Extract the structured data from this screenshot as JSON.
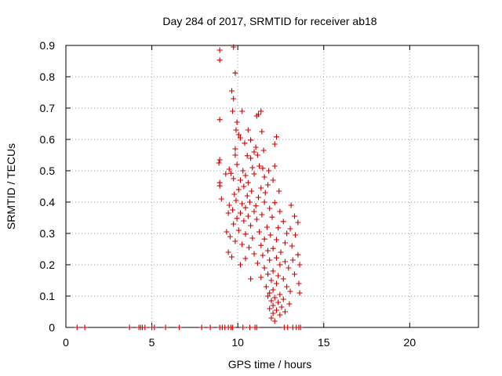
{
  "chart_data": {
    "type": "scatter",
    "title": "Day 284 of 2017, SRMTID for receiver ab18",
    "xlabel": "GPS time / hours",
    "ylabel": "SRMTID / TECUs",
    "xlim": [
      0,
      24
    ],
    "ylim": [
      0,
      0.9
    ],
    "xticks": [
      0,
      5,
      10,
      15,
      20
    ],
    "xtick_labels": [
      "0",
      "5",
      "10",
      "15",
      "20"
    ],
    "yticks": [
      0,
      0.1,
      0.2,
      0.3,
      0.4,
      0.5,
      0.6,
      0.7,
      0.8,
      0.9
    ],
    "ytick_labels": [
      "0",
      "0.1",
      "0.2",
      "0.3",
      "0.4",
      "0.5",
      "0.6",
      "0.7",
      "0.8",
      "0.9"
    ],
    "grid": true,
    "marker": "+",
    "series": [
      {
        "name": "SRMTID",
        "color": "#cc0000",
        "points": [
          [
            0.65,
            0
          ],
          [
            1.1,
            0
          ],
          [
            3.7,
            0
          ],
          [
            4.25,
            0
          ],
          [
            4.35,
            0
          ],
          [
            4.45,
            0
          ],
          [
            4.6,
            0
          ],
          [
            5.0,
            0
          ],
          [
            5.15,
            0
          ],
          [
            5.8,
            0
          ],
          [
            6.6,
            0
          ],
          [
            7.9,
            0
          ],
          [
            8.4,
            0
          ],
          [
            8.95,
            0
          ],
          [
            9.1,
            0
          ],
          [
            9.25,
            0
          ],
          [
            9.45,
            0
          ],
          [
            9.6,
            0
          ],
          [
            9.7,
            0
          ],
          [
            10.3,
            0
          ],
          [
            10.7,
            0
          ],
          [
            11.0,
            0
          ],
          [
            11.1,
            0
          ],
          [
            12.7,
            0
          ],
          [
            12.9,
            0
          ],
          [
            13.2,
            0
          ],
          [
            13.4,
            0
          ],
          [
            13.55,
            0
          ],
          [
            13.65,
            0
          ],
          [
            8.95,
            0.885
          ],
          [
            8.95,
            0.853
          ],
          [
            9.75,
            0.895
          ],
          [
            9.85,
            0.812
          ],
          [
            9.65,
            0.755
          ],
          [
            9.75,
            0.73
          ],
          [
            10.25,
            0.69
          ],
          [
            9.7,
            0.69
          ],
          [
            11.35,
            0.69
          ],
          [
            11.2,
            0.68
          ],
          [
            11.1,
            0.675
          ],
          [
            8.95,
            0.663
          ],
          [
            9.95,
            0.655
          ],
          [
            9.9,
            0.63
          ],
          [
            10.6,
            0.63
          ],
          [
            11.4,
            0.625
          ],
          [
            10.05,
            0.615
          ],
          [
            10.15,
            0.605
          ],
          [
            10.75,
            0.598
          ],
          [
            12.25,
            0.608
          ],
          [
            10.4,
            0.588
          ],
          [
            11.05,
            0.575
          ],
          [
            12.15,
            0.585
          ],
          [
            9.85,
            0.57
          ],
          [
            10.95,
            0.56
          ],
          [
            11.5,
            0.565
          ],
          [
            9.85,
            0.55
          ],
          [
            10.55,
            0.548
          ],
          [
            11.15,
            0.55
          ],
          [
            10.75,
            0.54
          ],
          [
            8.95,
            0.535
          ],
          [
            8.9,
            0.525
          ],
          [
            9.95,
            0.52
          ],
          [
            10.85,
            0.51
          ],
          [
            11.25,
            0.515
          ],
          [
            11.45,
            0.508
          ],
          [
            12.15,
            0.515
          ],
          [
            9.5,
            0.505
          ],
          [
            10.3,
            0.5
          ],
          [
            11.8,
            0.5
          ],
          [
            9.6,
            0.492
          ],
          [
            9.3,
            0.49
          ],
          [
            10.45,
            0.485
          ],
          [
            10.95,
            0.49
          ],
          [
            11.55,
            0.48
          ],
          [
            9.75,
            0.475
          ],
          [
            10.15,
            0.47
          ],
          [
            12.05,
            0.47
          ],
          [
            10.6,
            0.462
          ],
          [
            11.75,
            0.455
          ],
          [
            8.95,
            0.462
          ],
          [
            8.95,
            0.452
          ],
          [
            10.35,
            0.45
          ],
          [
            11.35,
            0.445
          ],
          [
            10.05,
            0.44
          ],
          [
            10.8,
            0.435
          ],
          [
            12.4,
            0.435
          ],
          [
            11.6,
            0.43
          ],
          [
            9.8,
            0.425
          ],
          [
            10.55,
            0.42
          ],
          [
            11.2,
            0.415
          ],
          [
            9.05,
            0.41
          ],
          [
            9.9,
            0.405
          ],
          [
            10.7,
            0.4
          ],
          [
            11.55,
            0.4
          ],
          [
            12.15,
            0.398
          ],
          [
            10.25,
            0.395
          ],
          [
            9.5,
            0.39
          ],
          [
            11.05,
            0.388
          ],
          [
            13.1,
            0.39
          ],
          [
            10.45,
            0.382
          ],
          [
            11.85,
            0.38
          ],
          [
            9.7,
            0.375
          ],
          [
            10.95,
            0.37
          ],
          [
            12.45,
            0.37
          ],
          [
            10.15,
            0.365
          ],
          [
            9.45,
            0.365
          ],
          [
            11.4,
            0.36
          ],
          [
            10.6,
            0.355
          ],
          [
            13.3,
            0.355
          ],
          [
            12.0,
            0.352
          ],
          [
            9.95,
            0.348
          ],
          [
            11.1,
            0.345
          ],
          [
            10.35,
            0.34
          ],
          [
            12.65,
            0.338
          ],
          [
            13.5,
            0.335
          ],
          [
            9.75,
            0.33
          ],
          [
            10.75,
            0.325
          ],
          [
            11.7,
            0.32
          ],
          [
            12.35,
            0.318
          ],
          [
            13.05,
            0.315
          ],
          [
            10.05,
            0.31
          ],
          [
            9.35,
            0.305
          ],
          [
            11.25,
            0.305
          ],
          [
            12.85,
            0.3
          ],
          [
            10.45,
            0.298
          ],
          [
            11.9,
            0.295
          ],
          [
            13.35,
            0.295
          ],
          [
            9.55,
            0.29
          ],
          [
            10.85,
            0.285
          ],
          [
            11.55,
            0.282
          ],
          [
            12.25,
            0.28
          ],
          [
            9.85,
            0.275
          ],
          [
            12.75,
            0.27
          ],
          [
            10.25,
            0.265
          ],
          [
            11.35,
            0.262
          ],
          [
            13.15,
            0.26
          ],
          [
            10.65,
            0.255
          ],
          [
            12.05,
            0.252
          ],
          [
            11.75,
            0.245
          ],
          [
            9.45,
            0.24
          ],
          [
            12.5,
            0.24
          ],
          [
            10.95,
            0.235
          ],
          [
            11.45,
            0.23
          ],
          [
            13.5,
            0.232
          ],
          [
            9.65,
            0.225
          ],
          [
            12.25,
            0.222
          ],
          [
            10.45,
            0.22
          ],
          [
            11.85,
            0.215
          ],
          [
            13.2,
            0.215
          ],
          [
            12.75,
            0.21
          ],
          [
            11.15,
            0.205
          ],
          [
            10.15,
            0.2
          ],
          [
            12.45,
            0.2
          ],
          [
            13.6,
            0.2
          ],
          [
            11.55,
            0.19
          ],
          [
            12.95,
            0.19
          ],
          [
            12.05,
            0.18
          ],
          [
            11.75,
            0.17
          ],
          [
            13.3,
            0.17
          ],
          [
            12.35,
            0.165
          ],
          [
            11.35,
            0.16
          ],
          [
            12.65,
            0.155
          ],
          [
            10.75,
            0.155
          ],
          [
            11.95,
            0.15
          ],
          [
            13.55,
            0.14
          ],
          [
            12.25,
            0.14
          ],
          [
            11.65,
            0.13
          ],
          [
            12.85,
            0.13
          ],
          [
            12.05,
            0.12
          ],
          [
            11.85,
            0.11
          ],
          [
            13.05,
            0.115
          ],
          [
            12.45,
            0.105
          ],
          [
            13.6,
            0.11
          ],
          [
            11.75,
            0.1
          ],
          [
            12.15,
            0.095
          ],
          [
            12.65,
            0.09
          ],
          [
            11.95,
            0.085
          ],
          [
            12.35,
            0.08
          ],
          [
            13.0,
            0.075
          ],
          [
            12.05,
            0.07
          ],
          [
            12.55,
            0.065
          ],
          [
            11.85,
            0.06
          ],
          [
            12.25,
            0.055
          ],
          [
            12.75,
            0.05
          ],
          [
            12.05,
            0.045
          ],
          [
            12.45,
            0.04
          ],
          [
            11.95,
            0.03
          ],
          [
            12.15,
            0.02
          ]
        ]
      }
    ]
  }
}
